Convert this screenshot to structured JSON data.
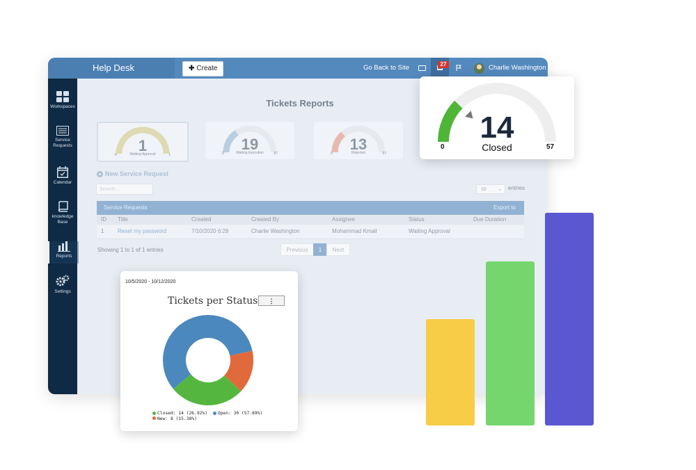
{
  "app": {
    "brand": "Help Desk",
    "create_label": "Create",
    "back_link": "Go Back to Site",
    "notifications_count": "27",
    "user_name": "Charlie Washington"
  },
  "sidebar": {
    "items": [
      {
        "label": "Workspaces",
        "icon": "grid-icon"
      },
      {
        "label": "Service Requests",
        "icon": "list-icon"
      },
      {
        "label": "Calendar",
        "icon": "calendar-icon"
      },
      {
        "label": "knowledge Base",
        "icon": "book-icon"
      },
      {
        "label": "Reports",
        "icon": "bar-chart-icon",
        "active": true
      },
      {
        "label": "Settings",
        "icon": "gears-icon"
      }
    ]
  },
  "reports": {
    "title": "Tickets Reports",
    "gauges": [
      {
        "value": 1,
        "label": "Waiting Approval",
        "min": "0",
        "max": "1",
        "color": "#d8cf8c"
      },
      {
        "value": 19,
        "label": "Waiting Execution",
        "min": "0",
        "max": "57",
        "color": "#9cbcd9"
      },
      {
        "value": 13,
        "label": "Rejected",
        "min": "0",
        "max": "57",
        "color": "#e89a8a"
      }
    ],
    "new_request": "New Service Request",
    "search_placeholder": "Search...",
    "entries_value": "10",
    "entries_label": "entries",
    "table": {
      "title": "Service Requests",
      "export": "Export to",
      "columns": [
        "ID",
        "Title",
        "Created",
        "Created By",
        "Assignee",
        "Status",
        "Due Duration"
      ],
      "rows": [
        {
          "id": "1",
          "title": "Reset my password",
          "created": "7/10/2020 6:29",
          "created_by": "Charlie Washington",
          "assignee": "Mohammad Kmail",
          "status": "Waiting Approval",
          "due": ""
        }
      ]
    },
    "showing": "Showing 1 to 1 of 1 entries",
    "pager": {
      "previous": "Previous",
      "page": "1",
      "next": "Next"
    }
  },
  "closed_gauge": {
    "value": 14,
    "label": "Closed",
    "min": "0",
    "max": "57",
    "color": "#4fb536"
  },
  "donut_card": {
    "date_range": "10/5/2020 - 10/12/2020",
    "chart_data": {
      "type": "pie",
      "title": "Tickets per Status",
      "series": [
        {
          "name": "Closed",
          "value": 14,
          "percent": "26.92%",
          "color": "#55b63f"
        },
        {
          "name": "Open",
          "value": 30,
          "percent": "57.69%",
          "color": "#4b88bd"
        },
        {
          "name": "New",
          "value": 8,
          "percent": "15.38%",
          "color": "#e06a3b"
        }
      ],
      "legend": [
        "Closed: 14 (26.92%)",
        "Open: 30 (57.69%)",
        "New: 8 (15.38%)"
      ]
    }
  },
  "bars": {
    "values": [
      0.5,
      0.77,
      1.0
    ],
    "colors": [
      "#f7cc47",
      "#76d66e",
      "#5b57d1"
    ]
  }
}
